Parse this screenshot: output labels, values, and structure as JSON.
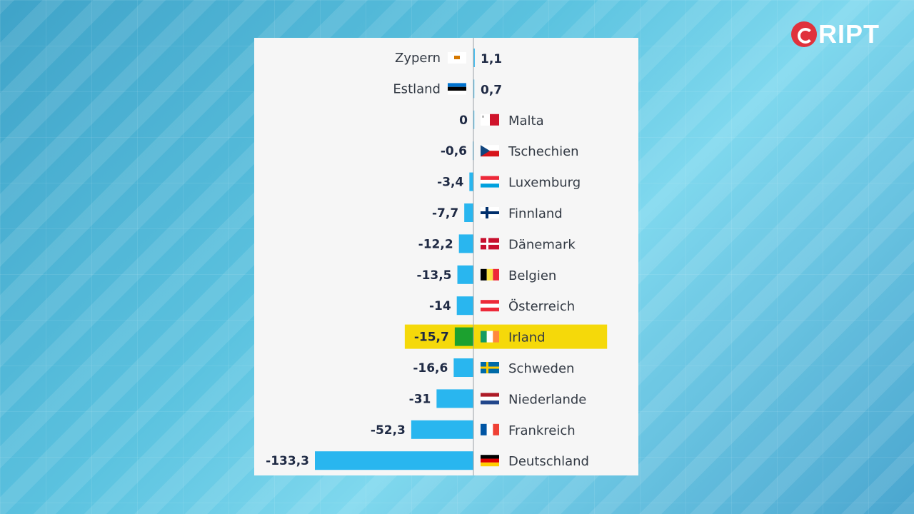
{
  "logo": {
    "text": "RIPT"
  },
  "colors": {
    "bar": "#29b6ef",
    "highlight": "#f5d90a",
    "highlight_bar": "#1ca12f",
    "axis": "#9aa0a6"
  },
  "chart_data": {
    "type": "bar",
    "orientation": "horizontal",
    "highlight": "Irland",
    "series": [
      {
        "values": [
          1.1,
          0.7,
          0,
          -0.6,
          -3.4,
          -7.7,
          -12.2,
          -13.5,
          -14,
          -15.7,
          -16.6,
          -31,
          -52.3,
          -133.3
        ]
      }
    ],
    "categories": [
      "Zypern",
      "Estland",
      "Malta",
      "Tschechien",
      "Luxemburg",
      "Finnland",
      "Dänemark",
      "Belgien",
      "Österreich",
      "Irland",
      "Schweden",
      "Niederlande",
      "Frankreich",
      "Deutschland"
    ],
    "value_labels": [
      "1,1",
      "0,7",
      "0",
      "-0,6",
      "-3,4",
      "-7,7",
      "-12,2",
      "-13,5",
      "-14",
      "-15,7",
      "-16,6",
      "-31",
      "-52,3",
      "-133,3"
    ],
    "flags": [
      "cyprus-flag",
      "estonia-flag",
      "malta-flag",
      "czech-flag",
      "luxembourg-flag",
      "finland-flag",
      "denmark-flag",
      "belgium-flag",
      "austria-flag",
      "ireland-flag",
      "sweden-flag",
      "netherlands-flag",
      "france-flag",
      "germany-flag"
    ],
    "xlim": [
      -133.3,
      1.1
    ],
    "grid": false,
    "legend": "none"
  }
}
